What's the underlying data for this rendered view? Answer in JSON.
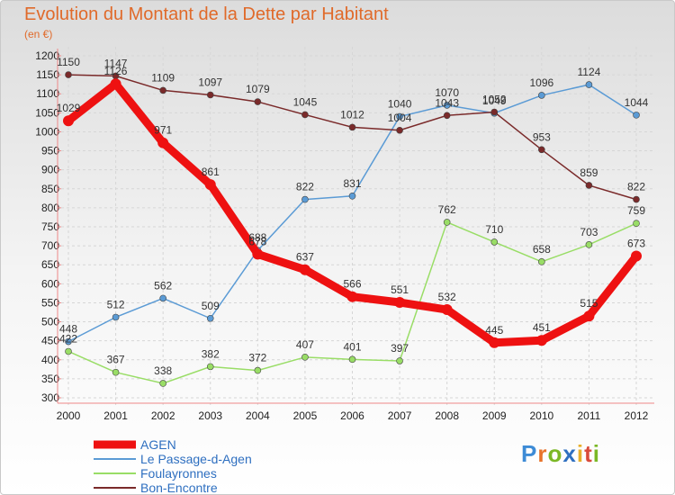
{
  "header": {
    "title": "Evolution du Montant de la Dette par Habitant",
    "subtitle": "(en €)"
  },
  "logo": {
    "letters": [
      "P",
      "r",
      "o",
      "x",
      "i",
      "t",
      "i"
    ],
    "colors": [
      "#3d8bd6",
      "#e8732a",
      "#7bb826",
      "#2e6fc0",
      "#e8b02a",
      "#d94a3a",
      "#7bb826"
    ]
  },
  "chart_data": {
    "type": "line",
    "x": [
      "2000",
      "2001",
      "2002",
      "2003",
      "2004",
      "2005",
      "2006",
      "2007",
      "2008",
      "2009",
      "2010",
      "2011",
      "2012"
    ],
    "ylim": [
      300,
      1200
    ],
    "yticks": [
      300,
      350,
      400,
      450,
      500,
      550,
      600,
      650,
      700,
      750,
      800,
      850,
      900,
      950,
      1000,
      1050,
      1100,
      1150,
      1200
    ],
    "grid": true,
    "legend_position": "bottom-left",
    "series": [
      {
        "name": "AGEN",
        "color": "#ee1111",
        "emphasis": true,
        "values": [
          1029,
          1126,
          971,
          861,
          678,
          637,
          566,
          551,
          532,
          445,
          451,
          515,
          673
        ]
      },
      {
        "name": "Le Passage-d-Agen",
        "color": "#5b9bd5",
        "values": [
          448,
          512,
          562,
          509,
          688,
          822,
          831,
          1040,
          1070,
          1049,
          1096,
          1124,
          1044
        ]
      },
      {
        "name": "Foulayronnes",
        "color": "#99dd66",
        "values": [
          422,
          367,
          338,
          382,
          372,
          407,
          401,
          397,
          762,
          710,
          658,
          703,
          759
        ]
      },
      {
        "name": "Bon-Encontre",
        "color": "#7a2a2a",
        "values": [
          1150,
          1147,
          1109,
          1097,
          1079,
          1045,
          1012,
          1004,
          1043,
          1052,
          953,
          859,
          822
        ]
      }
    ]
  }
}
